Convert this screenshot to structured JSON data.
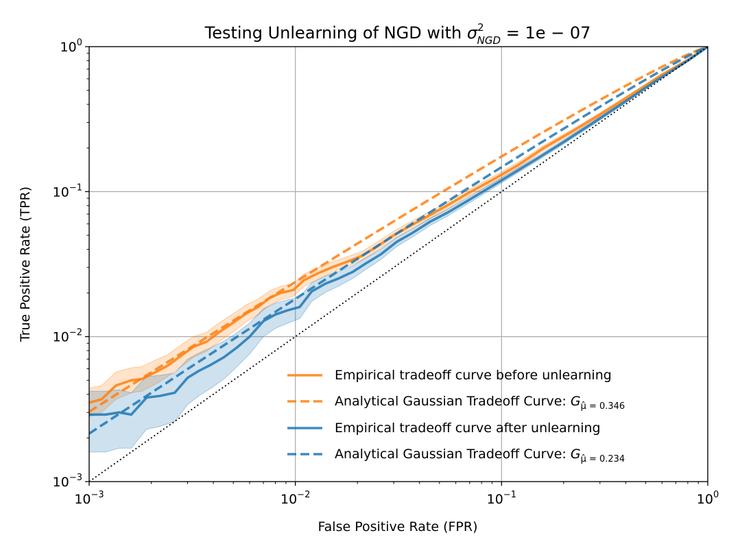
{
  "chart_data": {
    "type": "line",
    "title": "Testing Unlearning of NGD with ",
    "title_math": {
      "sym": "σ",
      "sup": "2",
      "sub": "NGD",
      "rest": " = 1e − 07"
    },
    "xlabel": "False Positive Rate (FPR)",
    "ylabel": "True Positive Rate (TPR)",
    "xscale": "log",
    "yscale": "log",
    "xlim": [
      0.001,
      1
    ],
    "ylim": [
      0.001,
      1
    ],
    "xticks": [
      {
        "value": 0.001,
        "base": "10",
        "exp": "−3"
      },
      {
        "value": 0.01,
        "base": "10",
        "exp": "−2"
      },
      {
        "value": 0.1,
        "base": "10",
        "exp": "−1"
      },
      {
        "value": 1,
        "base": "10",
        "exp": "0"
      }
    ],
    "yticks": [
      {
        "value": 0.001,
        "base": "10",
        "exp": "−3"
      },
      {
        "value": 0.01,
        "base": "10",
        "exp": "−2"
      },
      {
        "value": 0.1,
        "base": "10",
        "exp": "−1"
      },
      {
        "value": 1,
        "base": "10",
        "exp": "0"
      }
    ],
    "grid": true,
    "legend_position": "lower-right",
    "colors": {
      "orange": "#ff7f0e",
      "blue": "#1f77b4",
      "diagonal": "#000000",
      "grid": "#b0b0b0"
    },
    "series": [
      {
        "name": "Empirical tradeoff curve before unlearning",
        "legend_text": "Empirical tradeoff curve before unlearning",
        "color": "#ff7f0e",
        "style": "solid",
        "x": [
          0.001,
          0.00115,
          0.00135,
          0.0016,
          0.0018,
          0.0021,
          0.0024,
          0.0028,
          0.0032,
          0.0037,
          0.0043,
          0.005,
          0.0058,
          0.0066,
          0.0075,
          0.0085,
          0.0098,
          0.011,
          0.013,
          0.015,
          0.018,
          0.021,
          0.025,
          0.03,
          0.036,
          0.045,
          0.056,
          0.07,
          0.09,
          0.12,
          0.16,
          0.22,
          0.3,
          0.42,
          0.6,
          0.8,
          1.0
        ],
        "y": [
          0.0035,
          0.0037,
          0.0046,
          0.005,
          0.0051,
          0.0057,
          0.0063,
          0.0074,
          0.0085,
          0.0092,
          0.0108,
          0.0125,
          0.0145,
          0.016,
          0.0185,
          0.02,
          0.021,
          0.0245,
          0.0275,
          0.03,
          0.033,
          0.036,
          0.042,
          0.05,
          0.058,
          0.069,
          0.082,
          0.099,
          0.12,
          0.152,
          0.2,
          0.26,
          0.34,
          0.46,
          0.64,
          0.81,
          1.0
        ],
        "band_lower": [
          0.0028,
          0.003,
          0.0037,
          0.0041,
          0.0042,
          0.0047,
          0.0053,
          0.0062,
          0.0072,
          0.0079,
          0.0093,
          0.0108,
          0.0127,
          0.0141,
          0.0165,
          0.0179,
          0.019,
          0.0222,
          0.025,
          0.0275,
          0.0305,
          0.0335,
          0.0392,
          0.0468,
          0.0545,
          0.065,
          0.0775,
          0.0938,
          0.114,
          0.145,
          0.192,
          0.251,
          0.33,
          0.448,
          0.627,
          0.8,
          1.0
        ],
        "band_upper": [
          0.0044,
          0.0046,
          0.0057,
          0.0061,
          0.0062,
          0.0069,
          0.0075,
          0.0088,
          0.01,
          0.0107,
          0.0125,
          0.0144,
          0.0166,
          0.0182,
          0.0207,
          0.0223,
          0.0232,
          0.027,
          0.0301,
          0.0327,
          0.0357,
          0.0387,
          0.0449,
          0.0533,
          0.0616,
          0.0731,
          0.0866,
          0.104,
          0.126,
          0.159,
          0.208,
          0.269,
          0.35,
          0.472,
          0.653,
          0.82,
          1.0
        ]
      },
      {
        "name": "Analytical Gaussian Tradeoff Curve: G_{μ̂=0.346}",
        "legend_text": "Analytical Gaussian Tradeoff Curve: ",
        "legend_math": {
          "base": "G",
          "sub": "μ̂ = 0.346"
        },
        "color": "#ff7f0e",
        "style": "dashed",
        "mu": 0.346
      },
      {
        "name": "Empirical tradeoff curve after unlearning",
        "legend_text": "Empirical tradeoff curve after unlearning",
        "color": "#1f77b4",
        "style": "solid",
        "x": [
          0.001,
          0.0012,
          0.0014,
          0.0016,
          0.0019,
          0.0022,
          0.0026,
          0.003,
          0.0034,
          0.0039,
          0.0045,
          0.0052,
          0.006,
          0.007,
          0.008,
          0.0092,
          0.0105,
          0.012,
          0.014,
          0.016,
          0.019,
          0.022,
          0.026,
          0.031,
          0.037,
          0.045,
          0.055,
          0.068,
          0.085,
          0.11,
          0.15,
          0.2,
          0.28,
          0.4,
          0.56,
          0.8,
          1.0
        ],
        "y": [
          0.0029,
          0.0029,
          0.003,
          0.0029,
          0.0038,
          0.0039,
          0.0041,
          0.0052,
          0.0058,
          0.0064,
          0.0072,
          0.0084,
          0.01,
          0.0128,
          0.0142,
          0.0152,
          0.016,
          0.0205,
          0.0232,
          0.025,
          0.028,
          0.032,
          0.037,
          0.045,
          0.052,
          0.062,
          0.072,
          0.086,
          0.104,
          0.13,
          0.17,
          0.22,
          0.3,
          0.42,
          0.58,
          0.8,
          1.0
        ],
        "band_lower": [
          0.0016,
          0.0016,
          0.0017,
          0.0017,
          0.0023,
          0.0024,
          0.0026,
          0.0034,
          0.0039,
          0.0044,
          0.0051,
          0.0062,
          0.0076,
          0.01,
          0.0114,
          0.0124,
          0.0133,
          0.0175,
          0.0202,
          0.0221,
          0.0252,
          0.0291,
          0.034,
          0.0418,
          0.0487,
          0.0584,
          0.0682,
          0.0819,
          0.0995,
          0.125,
          0.164,
          0.213,
          0.291,
          0.41,
          0.569,
          0.79,
          1.0
        ],
        "band_upper": [
          0.0042,
          0.0042,
          0.0043,
          0.0041,
          0.0053,
          0.0054,
          0.0056,
          0.007,
          0.0077,
          0.0084,
          0.0093,
          0.0106,
          0.0124,
          0.0156,
          0.017,
          0.018,
          0.0187,
          0.0235,
          0.0262,
          0.0279,
          0.0308,
          0.0349,
          0.04,
          0.0482,
          0.0553,
          0.0656,
          0.0758,
          0.0901,
          0.1085,
          0.135,
          0.176,
          0.227,
          0.309,
          0.43,
          0.591,
          0.81,
          1.0
        ]
      },
      {
        "name": "Analytical Gaussian Tradeoff Curve: G_{μ̂=0.234}",
        "legend_text": "Analytical Gaussian Tradeoff Curve: ",
        "legend_math": {
          "base": "G",
          "sub": "μ̂ = 0.234"
        },
        "color": "#1f77b4",
        "style": "dashed",
        "mu": 0.234
      },
      {
        "name": "diagonal reference y = x",
        "color": "#000000",
        "style": "dotted",
        "x": [
          0.001,
          1.0
        ],
        "y": [
          0.001,
          1.0
        ]
      }
    ]
  }
}
